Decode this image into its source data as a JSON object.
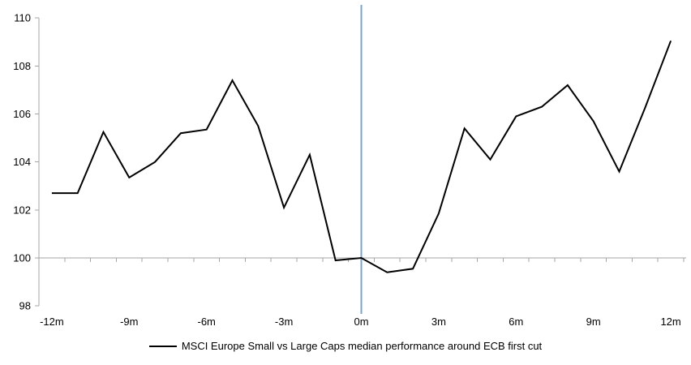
{
  "chart_data": {
    "type": "line",
    "title": "",
    "xlabel": "",
    "ylabel": "",
    "x": [
      -12,
      -11,
      -10,
      -9,
      -8,
      -7,
      -6,
      -5,
      -4,
      -3,
      -2,
      -1,
      0,
      1,
      2,
      3,
      4,
      5,
      6,
      7,
      8,
      9,
      10,
      11,
      12
    ],
    "series": [
      {
        "name": "MSCI Europe Small vs Large Caps median performance around ECB first cut",
        "color": "#000000",
        "values": [
          102.7,
          102.7,
          105.25,
          103.35,
          104.0,
          105.2,
          105.35,
          107.4,
          105.5,
          102.1,
          104.3,
          99.9,
          100.0,
          99.4,
          99.55,
          101.85,
          105.4,
          104.1,
          105.9,
          106.3,
          107.2,
          105.7,
          103.6,
          106.25,
          109.05
        ]
      }
    ],
    "ylim": [
      98,
      110
    ],
    "y_ticks": [
      98,
      100,
      102,
      104,
      106,
      108,
      110
    ],
    "x_ticks": [
      {
        "month": -12,
        "label": "-12m"
      },
      {
        "month": -9,
        "label": "-9m"
      },
      {
        "month": -6,
        "label": "-6m"
      },
      {
        "month": -3,
        "label": "-3m"
      },
      {
        "month": 0,
        "label": "0m"
      },
      {
        "month": 3,
        "label": "3m"
      },
      {
        "month": 6,
        "label": "6m"
      },
      {
        "month": 9,
        "label": "9m"
      },
      {
        "month": 12,
        "label": "12m"
      }
    ],
    "x_axis_cross": 100,
    "event_line_x": 0,
    "event_line_color": "#7ba4c9",
    "axis_color": "#a6a6a6",
    "grid": false,
    "legend_position": "bottom"
  },
  "legend": {
    "label": "MSCI Europe Small vs Large Caps median performance around ECB first cut",
    "swatch_color": "#000000"
  }
}
